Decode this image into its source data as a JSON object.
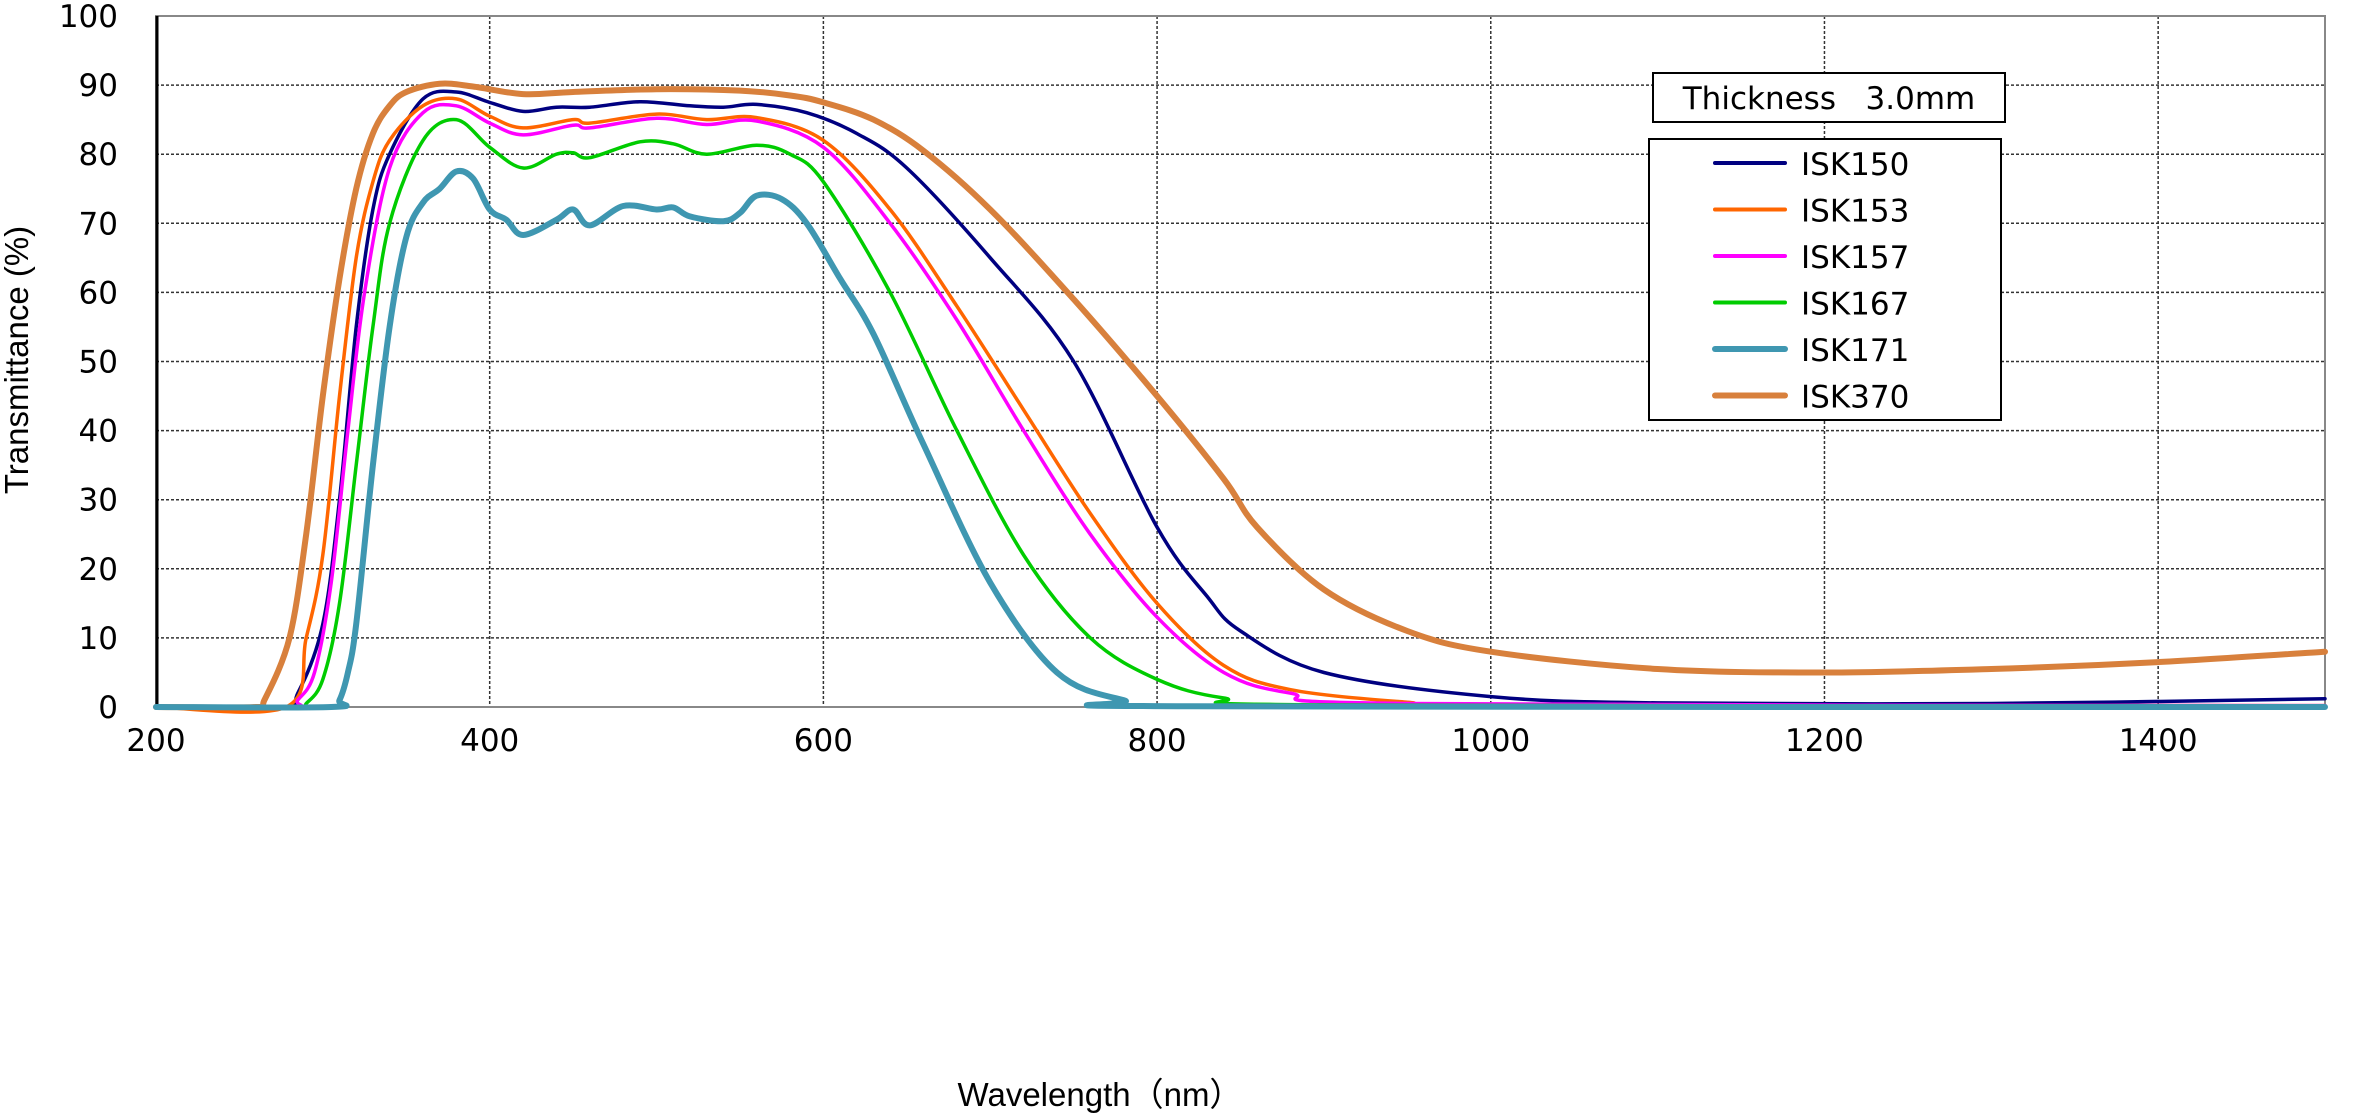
{
  "chart_data": {
    "type": "line",
    "title": "",
    "xlabel": "Wavelength（nm）",
    "ylabel": "Transmittance (%)",
    "xlim": [
      200,
      1500
    ],
    "ylim": [
      0,
      100
    ],
    "xticks": [
      200,
      400,
      600,
      800,
      1000,
      1200,
      1400
    ],
    "yticks": [
      0,
      10,
      20,
      30,
      40,
      50,
      60,
      70,
      80,
      90,
      100
    ],
    "grid": true,
    "legend_position": "top-right",
    "annotation": "Thickness   3.0mm",
    "series": [
      {
        "name": "ISK150",
        "color": "#000080",
        "x": [
          200,
          275,
          285,
          300,
          310,
          320,
          330,
          340,
          360,
          380,
          400,
          420,
          440,
          460,
          490,
          520,
          540,
          560,
          590,
          620,
          650,
          700,
          750,
          800,
          830,
          850,
          900,
          1000,
          1100,
          1300,
          1500
        ],
        "y": [
          0,
          0,
          2,
          12,
          30,
          55,
          72,
          80,
          88,
          89,
          87.5,
          86.2,
          86.8,
          86.8,
          87.6,
          87,
          86.8,
          87.2,
          86,
          83,
          78,
          65,
          50,
          26,
          16,
          11,
          5,
          1.5,
          0.6,
          0.5,
          1.2
        ]
      },
      {
        "name": "ISK153",
        "color": "#ff6600",
        "x": [
          200,
          278,
          290,
          300,
          310,
          320,
          330,
          340,
          360,
          380,
          400,
          420,
          450,
          460,
          500,
          530,
          560,
          600,
          640,
          680,
          720,
          760,
          800,
          840,
          880,
          950,
          1000,
          1500
        ],
        "y": [
          0,
          0,
          10,
          22,
          45,
          65,
          76,
          82,
          87,
          88,
          85.5,
          83.8,
          85,
          84.5,
          85.8,
          85,
          85.3,
          82,
          72,
          58,
          43,
          28,
          15,
          6,
          2.5,
          0.7,
          0.3,
          0.2
        ]
      },
      {
        "name": "ISK157",
        "color": "#ff00ff",
        "x": [
          200,
          280,
          285,
          295,
          305,
          315,
          325,
          340,
          360,
          380,
          400,
          420,
          450,
          460,
          500,
          530,
          560,
          600,
          640,
          680,
          720,
          760,
          800,
          840,
          880,
          950,
          1500
        ],
        "y": [
          0,
          0,
          1,
          5,
          18,
          40,
          60,
          78,
          86,
          87,
          84.5,
          82.8,
          84.2,
          83.8,
          85.2,
          84.3,
          84.8,
          81,
          70,
          56,
          40,
          25,
          13,
          5,
          2,
          0.5,
          0.2
        ]
      },
      {
        "name": "ISK167",
        "color": "#00cc00",
        "x": [
          200,
          285,
          290,
          300,
          310,
          320,
          330,
          340,
          360,
          380,
          400,
          420,
          440,
          450,
          460,
          490,
          510,
          530,
          560,
          580,
          600,
          640,
          680,
          720,
          760,
          800,
          840,
          900,
          1500
        ],
        "y": [
          0,
          0,
          0.5,
          4,
          15,
          35,
          55,
          70,
          82,
          85,
          81,
          78,
          80,
          80.2,
          79.5,
          81.8,
          81.5,
          80,
          81.3,
          80,
          76,
          60,
          40,
          22,
          10,
          4,
          1.3,
          0.3,
          0.1
        ]
      },
      {
        "name": "ISK171",
        "color": "#3f97b1",
        "x": [
          200,
          305,
          310,
          315,
          320,
          330,
          340,
          350,
          360,
          370,
          380,
          390,
          400,
          410,
          420,
          440,
          450,
          460,
          480,
          500,
          510,
          520,
          540,
          550,
          560,
          575,
          590,
          610,
          630,
          660,
          700,
          740,
          780,
          820,
          1500
        ],
        "y": [
          0,
          0,
          1,
          5,
          12,
          35,
          55,
          68,
          73,
          75,
          77.5,
          76.5,
          72,
          70.5,
          68.3,
          70.5,
          72,
          69.7,
          72.5,
          72,
          72.3,
          71,
          70.3,
          71.5,
          74,
          73.5,
          70,
          62,
          54,
          38,
          18,
          5,
          1,
          0.1,
          0
        ]
      },
      {
        "name": "ISK370",
        "color": "#d8803c",
        "x": [
          200,
          260,
          265,
          280,
          290,
          300,
          310,
          320,
          330,
          340,
          350,
          370,
          390,
          420,
          450,
          500,
          550,
          580,
          600,
          630,
          660,
          700,
          750,
          800,
          840,
          860,
          900,
          950,
          1000,
          1100,
          1200,
          1300,
          1400,
          1500
        ],
        "y": [
          0,
          0,
          1,
          10,
          25,
          45,
          62,
          75,
          83,
          87,
          89,
          90.2,
          89.8,
          88.7,
          89,
          89.4,
          89.2,
          88.5,
          87.5,
          85,
          80.5,
          72,
          59,
          45,
          33,
          26,
          17,
          11,
          8,
          5.5,
          5,
          5.5,
          6.5,
          8
        ]
      }
    ]
  }
}
